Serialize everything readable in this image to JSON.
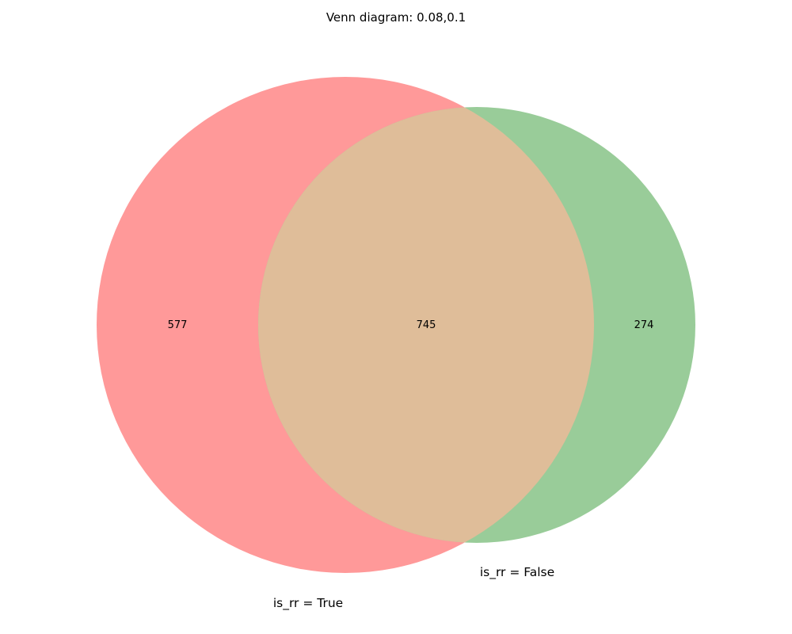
{
  "title": "Venn diagram: 0.08,0.1",
  "sets": [
    {
      "id": "A",
      "label": "is_rr = True",
      "color": "#ff9999"
    },
    {
      "id": "B",
      "label": "is_rr = False",
      "color": "#99cc99"
    }
  ],
  "regions": {
    "only_a": "577",
    "intersection": "745",
    "only_b": "274"
  },
  "intersection_color": "#dfbd99"
}
